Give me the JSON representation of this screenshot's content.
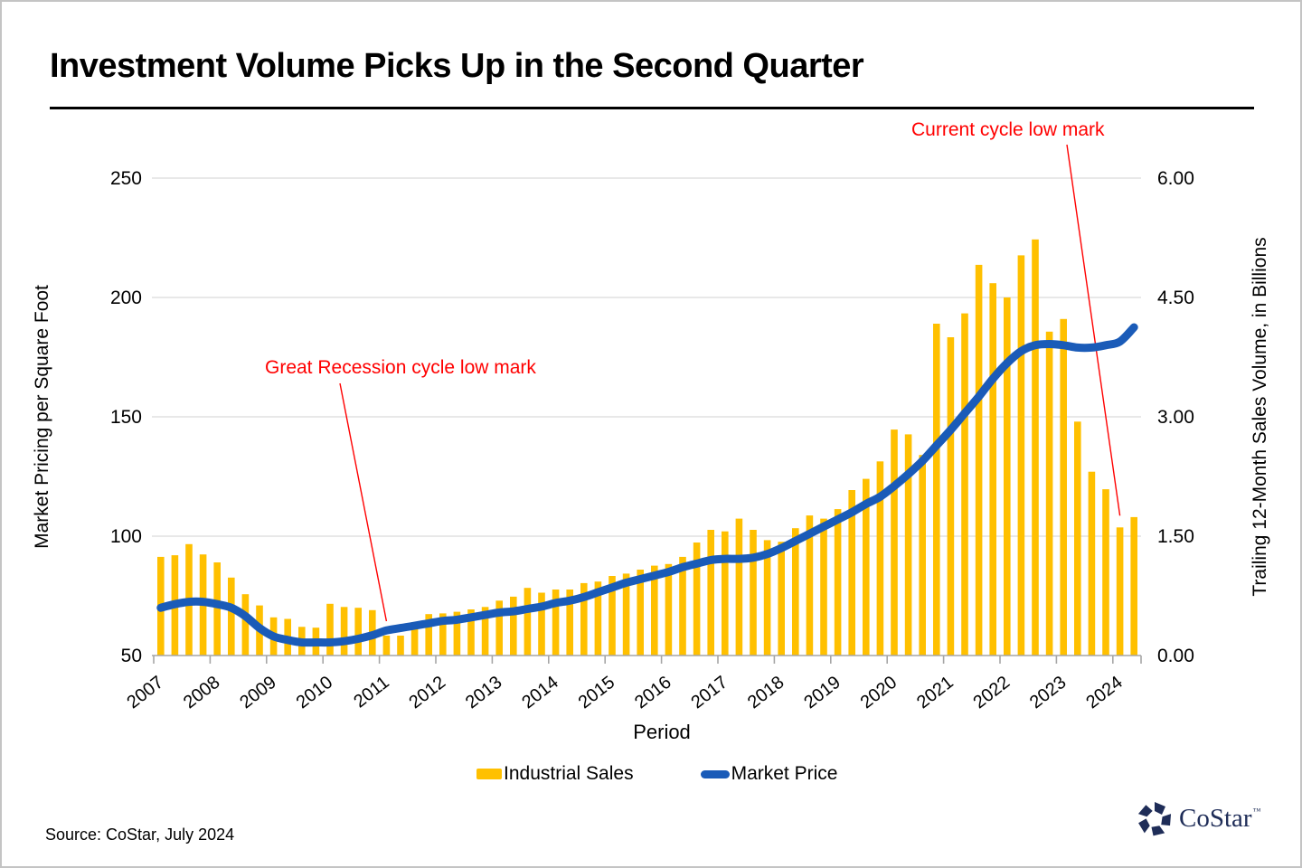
{
  "page": {
    "title": "Investment Volume Picks Up in the Second Quarter",
    "source": "Source: CoStar, July 2024",
    "logo_text": "CoStar",
    "logo_tm": "TM"
  },
  "chart_data": {
    "type": "bar+line combo",
    "x_axis": {
      "title": "Period",
      "year_ticks": [
        "2007",
        "2008",
        "2009",
        "2010",
        "2011",
        "2012",
        "2013",
        "2014",
        "2015",
        "2016",
        "2017",
        "2018",
        "2019",
        "2020",
        "2021",
        "2022",
        "2023",
        "2024"
      ]
    },
    "y_left": {
      "title": "Market Pricing per Square Foot",
      "ticks": [
        250,
        200,
        150,
        100,
        50
      ],
      "range": [
        50,
        250
      ]
    },
    "y_right": {
      "title": "Trailing 12-Month Sales Volume, in Billions",
      "ticks": [
        "6.00",
        "4.50",
        "3.00",
        "1.50",
        "0.00"
      ],
      "range": [
        0,
        6
      ]
    },
    "grid": "horizontal-only",
    "legend_position": "bottom-center",
    "periods": [
      "2007 Q1",
      "2007 Q2",
      "2007 Q3",
      "2007 Q4",
      "2008 Q1",
      "2008 Q2",
      "2008 Q3",
      "2008 Q4",
      "2009 Q1",
      "2009 Q2",
      "2009 Q3",
      "2009 Q4",
      "2010 Q1",
      "2010 Q2",
      "2010 Q3",
      "2010 Q4",
      "2011 Q1",
      "2011 Q2",
      "2011 Q3",
      "2011 Q4",
      "2012 Q1",
      "2012 Q2",
      "2012 Q3",
      "2012 Q4",
      "2013 Q1",
      "2013 Q2",
      "2013 Q3",
      "2013 Q4",
      "2014 Q1",
      "2014 Q2",
      "2014 Q3",
      "2014 Q4",
      "2015 Q1",
      "2015 Q2",
      "2015 Q3",
      "2015 Q4",
      "2016 Q1",
      "2016 Q2",
      "2016 Q3",
      "2016 Q4",
      "2017 Q1",
      "2017 Q2",
      "2017 Q3",
      "2017 Q4",
      "2018 Q1",
      "2018 Q2",
      "2018 Q3",
      "2018 Q4",
      "2019 Q1",
      "2019 Q2",
      "2019 Q3",
      "2019 Q4",
      "2020 Q1",
      "2020 Q2",
      "2020 Q3",
      "2020 Q4",
      "2021 Q1",
      "2021 Q2",
      "2021 Q3",
      "2021 Q4",
      "2022 Q1",
      "2022 Q2",
      "2022 Q3",
      "2022 Q4",
      "2023 Q1",
      "2023 Q2",
      "2023 Q3",
      "2023 Q4",
      "2024 Q1",
      "2024 Q2"
    ],
    "series": [
      {
        "name": "Industrial Sales",
        "type": "bar",
        "axis": "right",
        "units": "billions USD",
        "color": "#FFC000",
        "values": [
          1.24,
          1.26,
          1.4,
          1.27,
          1.17,
          0.98,
          0.77,
          0.63,
          0.48,
          0.46,
          0.36,
          0.35,
          0.65,
          0.61,
          0.6,
          0.57,
          0.25,
          0.25,
          0.42,
          0.52,
          0.53,
          0.55,
          0.58,
          0.61,
          0.69,
          0.74,
          0.85,
          0.79,
          0.83,
          0.83,
          0.91,
          0.93,
          1.0,
          1.03,
          1.08,
          1.13,
          1.15,
          1.24,
          1.42,
          1.58,
          1.56,
          1.72,
          1.58,
          1.45,
          1.43,
          1.6,
          1.76,
          1.72,
          1.84,
          2.08,
          2.22,
          2.44,
          2.84,
          2.78,
          2.52,
          4.17,
          4.0,
          4.3,
          4.91,
          4.68,
          4.5,
          5.03,
          5.23,
          4.07,
          4.23,
          2.94,
          2.31,
          2.09,
          1.61,
          1.74
        ]
      },
      {
        "name": "Market Price",
        "type": "line",
        "axis": "left",
        "units": "USD per square foot",
        "color": "#1A5BB8",
        "values": [
          70,
          71.5,
          72.5,
          72.5,
          71.5,
          70,
          66.5,
          61.5,
          58,
          56.5,
          55.5,
          55.5,
          55.5,
          56,
          57,
          58.5,
          60.5,
          61.5,
          62.5,
          63.5,
          64.5,
          65,
          66,
          67,
          68,
          68.5,
          69.5,
          70.5,
          72,
          73,
          74.5,
          76.5,
          78.5,
          80.5,
          82,
          83.5,
          85,
          87,
          88.5,
          90,
          90.5,
          90.5,
          91,
          92.5,
          95,
          98,
          101,
          104,
          107,
          110,
          113.5,
          116.5,
          121,
          126,
          131.5,
          138,
          144.5,
          151.5,
          158.5,
          166,
          172.5,
          177.5,
          180,
          180.5,
          180,
          179,
          179,
          180,
          181.5,
          187.5
        ]
      }
    ],
    "annotations": [
      {
        "text": "Great Recession cycle low mark",
        "color": "#FF0000",
        "target_period": "2011 Q1"
      },
      {
        "text": "Current cycle low mark",
        "color": "#FF0000",
        "target_period": "2024 Q1"
      }
    ],
    "legend": [
      {
        "label": "Industrial Sales",
        "color": "#FFC000",
        "shape": "bar"
      },
      {
        "label": "Market Price",
        "color": "#1A5BB8",
        "shape": "line"
      }
    ]
  }
}
